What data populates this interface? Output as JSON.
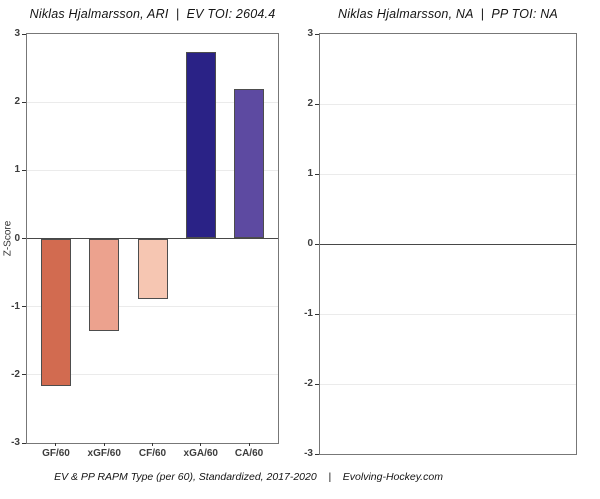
{
  "caption": "EV & PP RAPM Type (per 60), Standardized, 2017-2020    |    Evolving-Hockey.com",
  "y_axis_label": "Z-Score",
  "colors": {
    "grid": "#ebebeb",
    "zero_line": "#474747",
    "bar_border": "#4d4d4d",
    "panel_border": "#777777",
    "tick_text": "#3d3d3d"
  },
  "chart_data": [
    {
      "type": "bar",
      "title": "Niklas Hjalmarsson, ARI  |  EV TOI: 2604.4",
      "categories": [
        "GF/60",
        "xGF/60",
        "CF/60",
        "xGA/60",
        "CA/60"
      ],
      "values": [
        -2.17,
        -1.36,
        -0.89,
        2.74,
        2.19
      ],
      "bar_colors": [
        "#d26b50",
        "#eca28e",
        "#f6c6b2",
        "#2a2286",
        "#5d4aa1"
      ],
      "xlabel": "",
      "ylabel": "Z-Score",
      "ylim": [
        -3,
        3
      ],
      "yticks": [
        3,
        2,
        1,
        0,
        -1,
        -2,
        -3
      ],
      "grid": true,
      "legend": "none"
    },
    {
      "type": "bar",
      "title": "Niklas Hjalmarsson, NA  |  PP TOI: NA",
      "categories": [],
      "values": [],
      "bar_colors": [],
      "xlabel": "",
      "ylabel": "",
      "ylim": [
        -3,
        3
      ],
      "yticks": [
        3,
        2,
        1,
        0,
        -1,
        -2,
        -3
      ],
      "grid": true,
      "legend": "none"
    }
  ]
}
